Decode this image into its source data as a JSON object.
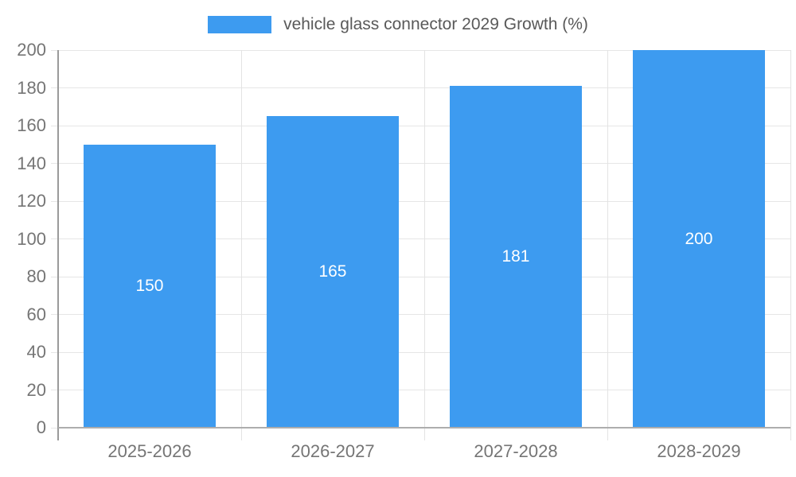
{
  "chart_data": {
    "type": "bar",
    "title": "",
    "legend_label": "vehicle glass connector 2029 Growth (%)",
    "legend_position": "top",
    "categories": [
      "2025-2026",
      "2026-2027",
      "2027-2028",
      "2028-2029"
    ],
    "series": [
      {
        "name": "vehicle glass connector 2029 Growth (%)",
        "values": [
          150,
          165,
          181,
          200
        ]
      }
    ],
    "xlabel": "",
    "ylabel": "",
    "ylim": [
      0,
      200
    ],
    "yticks": [
      0,
      20,
      40,
      60,
      80,
      100,
      120,
      140,
      160,
      180,
      200
    ],
    "grid": true,
    "value_labels_shown": true,
    "colors": {
      "bar": "#3D9BF0",
      "grid_h": "#E6E6E6",
      "grid_v": "#E3E3E3",
      "axis_y": "#9A9A9A",
      "axis_x": "#ADADAD",
      "tick_text": "#757575",
      "legend_text": "#595959",
      "value_text": "#FFFFFF",
      "background": "#FFFFFF"
    }
  }
}
